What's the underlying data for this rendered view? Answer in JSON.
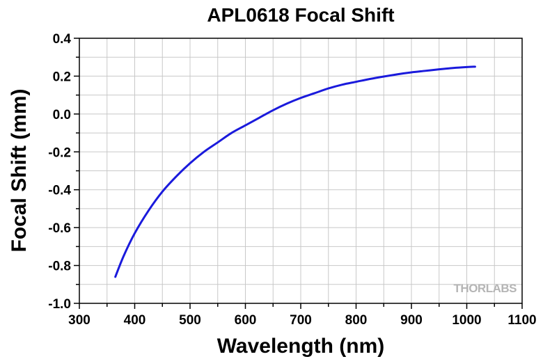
{
  "chart_data": {
    "type": "line",
    "title": "APL0618 Focal Shift",
    "xlabel": "Wavelength (nm)",
    "ylabel": "Focal Shift (mm)",
    "xlim": [
      300,
      1100
    ],
    "ylim": [
      -1.0,
      0.4
    ],
    "x_ticks": [
      300,
      400,
      500,
      600,
      700,
      800,
      900,
      1000,
      1100
    ],
    "y_ticks": [
      0.4,
      0.2,
      0.0,
      -0.2,
      -0.4,
      -0.6,
      -0.8,
      -1.0
    ],
    "x_tick_labels": [
      "300",
      "400",
      "500",
      "600",
      "700",
      "800",
      "900",
      "1000",
      "1100"
    ],
    "y_tick_labels": [
      "0.4",
      "0.2",
      "0.0",
      "-0.2",
      "-0.4",
      "-0.6",
      "-0.8",
      "-1.0"
    ],
    "grid": true,
    "series": [
      {
        "color": "#1a1adc",
        "x": [
          365,
          380,
          400,
          425,
          450,
          475,
          500,
          525,
          550,
          575,
          600,
          625,
          650,
          675,
          700,
          725,
          750,
          775,
          800,
          825,
          850,
          875,
          900,
          925,
          950,
          975,
          1000,
          1015
        ],
        "y": [
          -0.86,
          -0.75,
          -0.63,
          -0.51,
          -0.41,
          -0.33,
          -0.26,
          -0.2,
          -0.15,
          -0.1,
          -0.06,
          -0.02,
          0.02,
          0.055,
          0.085,
          0.11,
          0.135,
          0.155,
          0.17,
          0.185,
          0.198,
          0.21,
          0.22,
          0.228,
          0.236,
          0.243,
          0.248,
          0.25
        ]
      }
    ]
  },
  "watermark": "THORLABS"
}
